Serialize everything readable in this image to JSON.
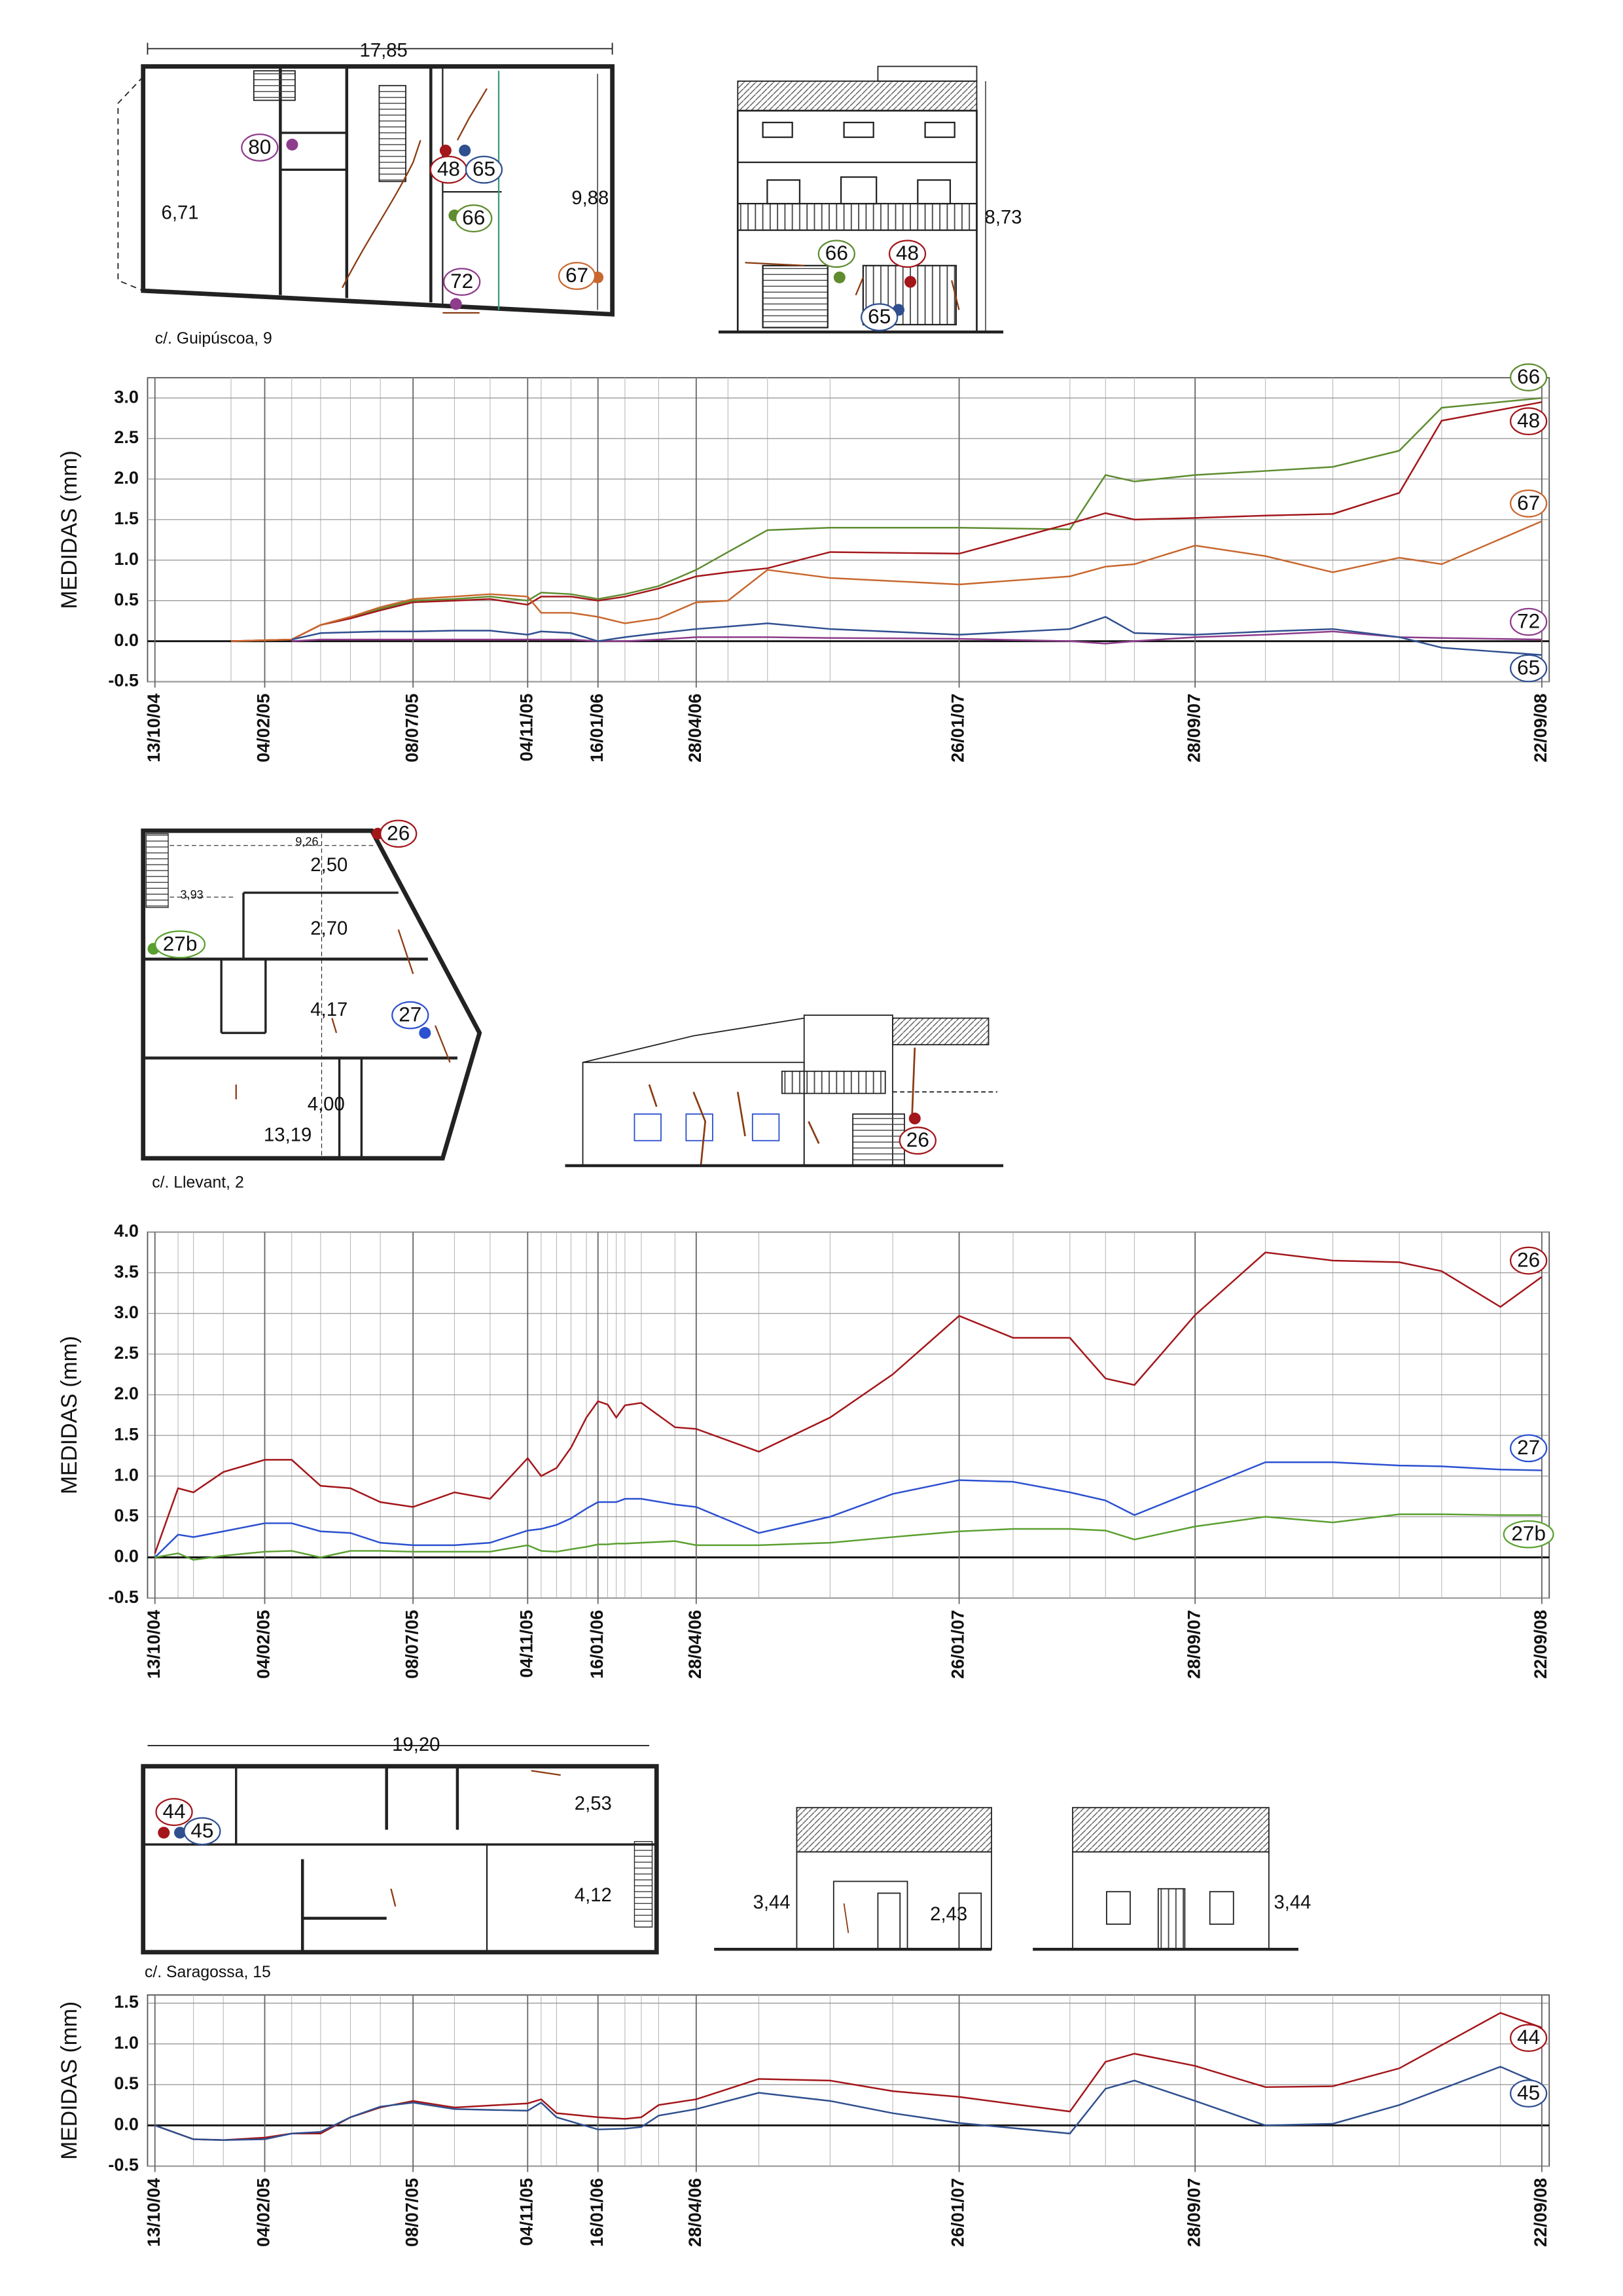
{
  "drawings": [
    {
      "caption": "c/. Guipúscoa, 9",
      "plan_dimensions": [
        "17,85",
        "6,71",
        "9,88"
      ],
      "elevation_dimensions": [
        "8,73"
      ],
      "plan_markers": [
        {
          "label": "80",
          "color": "#8e3c8c"
        },
        {
          "label": "48",
          "color": "#a3161a"
        },
        {
          "label": "65",
          "color": "#2f4f8f"
        },
        {
          "label": "66",
          "color": "#5e8c2f"
        },
        {
          "label": "72",
          "color": "#8e3c8c"
        },
        {
          "label": "67",
          "color": "#c8672e"
        }
      ],
      "elevation_markers": [
        {
          "label": "66",
          "color": "#5e8c2f"
        },
        {
          "label": "48",
          "color": "#a3161a"
        },
        {
          "label": "65",
          "color": "#2f4f8f"
        }
      ]
    },
    {
      "caption": "c/. Llevant, 2",
      "plan_dimensions": [
        "9,26",
        "3,93",
        "2,50",
        "2,70",
        "4,17",
        "4,00",
        "13,19"
      ],
      "elevation_dimensions": [],
      "plan_markers": [
        {
          "label": "26",
          "color": "#a3161a"
        },
        {
          "label": "27b",
          "color": "#5aa030"
        },
        {
          "label": "27",
          "color": "#2b50d0"
        }
      ],
      "elevation_markers": [
        {
          "label": "26",
          "color": "#a3161a"
        }
      ]
    },
    {
      "caption": "c/. Saragossa, 15",
      "plan_dimensions": [
        "19,20",
        "2,53",
        "4,12"
      ],
      "elevation_dimensions": [
        "3,44",
        "2,43",
        "3,44"
      ],
      "plan_markers": [
        {
          "label": "44",
          "color": "#a3161a"
        },
        {
          "label": "45",
          "color": "#2f4f8f"
        }
      ],
      "elevation_markers": []
    }
  ],
  "chart_data": [
    {
      "type": "line",
      "y_label": "MEDIDAS (mm)",
      "grid": true,
      "x": [
        "31/12/04",
        "04/03/05",
        "03/04/05",
        "04/05/05",
        "04/06/05",
        "08/07/05",
        "20/08/05",
        "26/09/05",
        "04/11/05",
        "18/11/05",
        "19/12/05",
        "16/01/06",
        "13/02/06",
        "20/03/06",
        "28/04/06",
        "31/05/06",
        "11/07/06",
        "14/09/06",
        "26/01/07",
        "21/05/07",
        "27/06/07",
        "27/07/07",
        "28/09/07",
        "10/12/07",
        "18/02/08",
        "27/04/08",
        "10/06/08",
        "22/09/08"
      ],
      "xlim": [
        "13/10/04",
        "22/09/08"
      ],
      "xticks": [
        "13/10/04",
        "04/02/05",
        "08/07/05",
        "04/11/05",
        "16/01/06",
        "28/04/06",
        "26/01/07",
        "28/09/07",
        "22/09/08"
      ],
      "ylim": [
        -0.5,
        3.25
      ],
      "yticks": [
        -0.5,
        {
          "value": 0,
          "label": "0.0"
        },
        0.5,
        {
          "value": 1,
          "label": "1.0"
        },
        1.5,
        {
          "value": 2,
          "label": "2.0"
        },
        2.5,
        {
          "value": 3,
          "label": "3.0"
        }
      ],
      "series": [
        {
          "name": "66",
          "color": "#5e8c2f",
          "values": [
            0,
            0.02,
            0.2,
            0.3,
            0.4,
            0.5,
            0.52,
            0.55,
            0.5,
            0.6,
            0.58,
            0.52,
            0.58,
            0.68,
            0.88,
            1.1,
            1.37,
            1.4,
            1.4,
            1.38,
            2.05,
            1.97,
            2.05,
            2.1,
            2.15,
            2.35,
            2.88,
            3.0
          ]
        },
        {
          "name": "48",
          "color": "#a3161a",
          "values": [
            0,
            0.02,
            0.2,
            0.28,
            0.38,
            0.48,
            0.5,
            0.52,
            0.45,
            0.55,
            0.55,
            0.5,
            0.55,
            0.65,
            0.8,
            0.85,
            0.9,
            1.1,
            1.08,
            1.45,
            1.58,
            1.5,
            1.52,
            1.55,
            1.57,
            1.83,
            2.72,
            2.95
          ]
        },
        {
          "name": "67",
          "color": "#c8672e",
          "values": [
            0,
            0.02,
            0.2,
            0.3,
            0.42,
            0.52,
            0.55,
            0.58,
            0.55,
            0.35,
            0.35,
            0.3,
            0.22,
            0.28,
            0.48,
            0.5,
            0.88,
            0.78,
            0.7,
            0.8,
            0.92,
            0.95,
            1.18,
            1.05,
            0.85,
            1.03,
            0.95,
            1.48
          ]
        },
        {
          "name": "72",
          "color": "#8e3c8c",
          "values": [
            null,
            0,
            0.02,
            0.02,
            0.02,
            0.02,
            0.02,
            0.02,
            0.02,
            0.02,
            0.02,
            0,
            0,
            0.02,
            0.05,
            0.05,
            0.05,
            0.04,
            0.03,
            0,
            -0.03,
            0,
            0.05,
            0.08,
            0.12,
            0.05,
            0.04,
            0.02
          ]
        },
        {
          "name": "65",
          "color": "#2f4f8f",
          "values": [
            null,
            0.02,
            0.1,
            0.11,
            0.12,
            0.12,
            0.13,
            0.13,
            0.08,
            0.12,
            0.1,
            0.0,
            0.05,
            0.1,
            0.15,
            0.18,
            0.22,
            0.15,
            0.08,
            0.15,
            0.3,
            0.1,
            0.08,
            0.12,
            0.15,
            0.05,
            -0.08,
            -0.17
          ]
        }
      ]
    },
    {
      "type": "line",
      "y_label": "MEDIDAS (mm)",
      "grid": true,
      "x": [
        "13/10/04",
        "06/11/04",
        "22/11/04",
        "23/12/04",
        "04/02/05",
        "04/03/05",
        "03/04/05",
        "04/05/05",
        "04/06/05",
        "08/07/05",
        "20/08/05",
        "26/09/05",
        "04/11/05",
        "18/11/05",
        "04/12/05",
        "19/12/05",
        "04/01/06",
        "16/01/06",
        "26/01/06",
        "04/02/06",
        "13/02/06",
        "02/03/06",
        "06/04/06",
        "28/04/06",
        "02/07/06",
        "14/09/06",
        "18/11/06",
        "26/01/07",
        "23/03/07",
        "21/05/07",
        "27/06/07",
        "27/07/07",
        "28/09/07",
        "10/12/07",
        "18/02/08",
        "27/04/08",
        "10/06/08",
        "10/08/08",
        "22/09/08"
      ],
      "xlim": [
        "13/10/04",
        "22/09/08"
      ],
      "xticks": [
        "13/10/04",
        "04/02/05",
        "08/07/05",
        "04/11/05",
        "16/01/06",
        "28/04/06",
        "26/01/07",
        "28/09/07",
        "22/09/08"
      ],
      "ylim": [
        -0.5,
        4.0
      ],
      "yticks": [
        -0.5,
        {
          "value": 0,
          "label": "0.0"
        },
        0.5,
        {
          "value": 1,
          "label": "1.0"
        },
        1.5,
        {
          "value": 2,
          "label": "2.0"
        },
        2.5,
        {
          "value": 3,
          "label": "3.0"
        },
        3.5,
        {
          "value": 4,
          "label": "4.0"
        }
      ],
      "series": [
        {
          "name": "26",
          "color": "#a3161a",
          "values": [
            0.05,
            0.85,
            0.8,
            1.05,
            1.2,
            1.2,
            0.88,
            0.85,
            0.68,
            0.62,
            0.8,
            0.72,
            1.22,
            1.0,
            1.1,
            1.35,
            1.72,
            1.92,
            1.88,
            1.72,
            1.87,
            1.9,
            1.6,
            1.58,
            1.3,
            1.72,
            2.25,
            2.97,
            2.7,
            2.7,
            2.2,
            2.12,
            2.98,
            3.75,
            3.65,
            3.63,
            3.52,
            3.08,
            3.45
          ]
        },
        {
          "name": "27",
          "color": "#2b50d0",
          "values": [
            0.0,
            0.28,
            0.25,
            0.32,
            0.42,
            0.42,
            0.32,
            0.3,
            0.18,
            0.15,
            0.15,
            0.18,
            0.33,
            0.35,
            0.4,
            0.48,
            0.6,
            0.68,
            0.68,
            0.68,
            0.72,
            0.72,
            0.65,
            0.62,
            0.3,
            0.5,
            0.78,
            0.95,
            0.93,
            0.8,
            0.7,
            0.52,
            0.82,
            1.17,
            1.17,
            1.13,
            1.12,
            1.08,
            1.07
          ]
        },
        {
          "name": "27b",
          "color": "#5aa030",
          "values": [
            0.0,
            0.05,
            -0.03,
            0.02,
            0.07,
            0.08,
            0.0,
            0.08,
            0.08,
            0.07,
            0.07,
            0.07,
            0.15,
            0.08,
            0.07,
            0.1,
            0.13,
            0.16,
            0.16,
            0.17,
            0.17,
            0.18,
            0.2,
            0.15,
            0.15,
            0.18,
            0.25,
            0.32,
            0.35,
            0.35,
            0.33,
            0.22,
            0.38,
            0.5,
            0.43,
            0.53,
            0.53,
            0.52,
            0.52
          ]
        }
      ]
    },
    {
      "type": "line",
      "y_label": "MEDIDAS (mm)",
      "grid": true,
      "x": [
        "13/10/04",
        "22/11/04",
        "23/12/04",
        "04/02/05",
        "04/03/05",
        "03/04/05",
        "04/05/05",
        "04/06/05",
        "08/07/05",
        "20/08/05",
        "04/11/05",
        "18/11/05",
        "04/12/05",
        "16/01/06",
        "13/02/06",
        "02/03/06",
        "20/03/06",
        "28/04/06",
        "02/07/06",
        "14/09/06",
        "18/11/06",
        "26/01/07",
        "21/05/07",
        "27/06/07",
        "27/07/07",
        "28/09/07",
        "10/12/07",
        "18/02/08",
        "27/04/08",
        "10/08/08",
        "22/09/08"
      ],
      "xlim": [
        "13/10/04",
        "22/09/08"
      ],
      "xticks": [
        "13/10/04",
        "04/02/05",
        "08/07/05",
        "04/11/05",
        "16/01/06",
        "28/04/06",
        "26/01/07",
        "28/09/07",
        "22/09/08"
      ],
      "ylim": [
        -0.5,
        1.6
      ],
      "yticks": [
        -0.5,
        {
          "value": 0,
          "label": "0.0"
        },
        0.5,
        {
          "value": 1,
          "label": "1.0"
        },
        1.5
      ],
      "series": [
        {
          "name": "44",
          "color": "#a3161a",
          "values": [
            0,
            -0.17,
            -0.18,
            -0.15,
            -0.1,
            -0.1,
            0.1,
            0.22,
            0.3,
            0.22,
            0.27,
            0.32,
            0.15,
            0.1,
            0.08,
            0.1,
            0.25,
            0.32,
            0.57,
            0.55,
            0.42,
            0.35,
            0.17,
            0.78,
            0.88,
            0.73,
            0.47,
            0.48,
            0.7,
            1.38,
            1.2
          ]
        },
        {
          "name": "45",
          "color": "#2f4f8f",
          "values": [
            0,
            -0.17,
            -0.18,
            -0.17,
            -0.1,
            -0.08,
            0.1,
            0.23,
            0.28,
            0.2,
            0.18,
            0.28,
            0.1,
            -0.05,
            -0.04,
            -0.02,
            0.12,
            0.2,
            0.4,
            0.3,
            0.15,
            0.03,
            -0.1,
            0.45,
            0.55,
            0.3,
            0.0,
            0.02,
            0.25,
            0.72,
            0.5
          ]
        }
      ]
    }
  ]
}
